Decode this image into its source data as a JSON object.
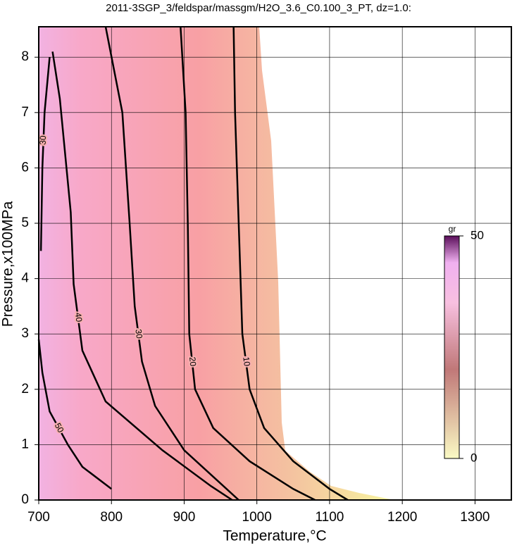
{
  "chart_data": {
    "type": "contour",
    "title": "2011-3SGP_3/feldspar/massgm/H2O_3.6_C0.100_3_PT, dz=1.0:",
    "x_label": "Temperature,°C",
    "y_label": "Pressure,x100MPa",
    "xlim": [
      700,
      1350
    ],
    "ylim": [
      0,
      8.55
    ],
    "xticks": [
      700,
      800,
      900,
      1000,
      1100,
      1200,
      1300
    ],
    "yticks": [
      0,
      1,
      2,
      3,
      4,
      5,
      6,
      7,
      8
    ],
    "grid": true,
    "color": "#000000",
    "series": [
      {
        "name": "10",
        "x": [
          968,
          970,
          975,
          980,
          990,
          1010,
          1050,
          1100,
          1125
        ],
        "y": [
          8.55,
          7,
          5,
          3,
          2,
          1.3,
          0.7,
          0.2,
          0
        ]
      },
      {
        "name": "20",
        "x": [
          895,
          902,
          905,
          907,
          915,
          940,
          990,
          1050,
          1080
        ],
        "y": [
          8.55,
          7,
          5,
          3,
          2,
          1.3,
          0.7,
          0.2,
          0
        ]
      },
      {
        "name": "30",
        "x": [
          792,
          815,
          825,
          832,
          842,
          860,
          900,
          950,
          975
        ],
        "y": [
          8.55,
          7,
          5,
          3.5,
          2.5,
          1.7,
          0.9,
          0.3,
          0
        ]
      },
      {
        "name": "40",
        "x": [
          719,
          729,
          744,
          748,
          760,
          792,
          870,
          937,
          966
        ],
        "y": [
          8.1,
          7.25,
          5.2,
          3.9,
          2.7,
          1.78,
          0.9,
          0.25,
          0
        ]
      },
      {
        "name": "30",
        "x": [
          715,
          708,
          705,
          703
        ],
        "y": [
          8.0,
          7,
          6,
          4.5
        ]
      },
      {
        "name": "50",
        "x": [
          700,
          705,
          715,
          740,
          760,
          800
        ],
        "y": [
          2.9,
          2.3,
          1.6,
          1.0,
          0.6,
          0.2
        ]
      }
    ],
    "colorbar": {
      "label": "gr",
      "lim": [
        0,
        50
      ],
      "ticks": [
        0,
        50
      ]
    }
  }
}
